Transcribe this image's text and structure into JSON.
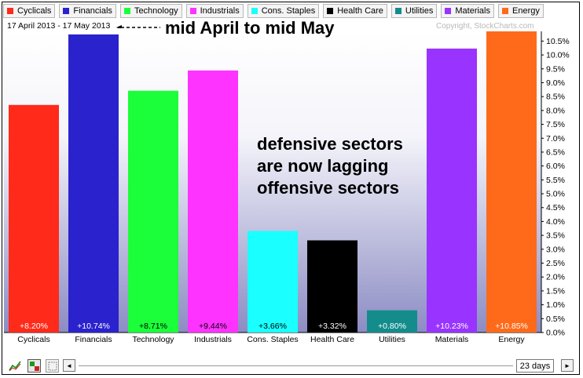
{
  "header": {
    "date_range": "17 April 2013 - 17 May 2013",
    "copyright": "Copyright, StockCharts.com",
    "arrow_note": "mid April to mid May"
  },
  "annotation": {
    "lines": [
      "defensive sectors",
      "are now lagging",
      "offensive sectors"
    ]
  },
  "legend": [
    {
      "label": "Cyclicals",
      "color": "#ff2a1a"
    },
    {
      "label": "Financials",
      "color": "#2a22cc"
    },
    {
      "label": "Technology",
      "color": "#1aff3a"
    },
    {
      "label": "Industrials",
      "color": "#ff33ff"
    },
    {
      "label": "Cons. Staples",
      "color": "#1affff"
    },
    {
      "label": "Health Care",
      "color": "#000000"
    },
    {
      "label": "Utilities",
      "color": "#148c8c"
    },
    {
      "label": "Materials",
      "color": "#9933ff"
    },
    {
      "label": "Energy",
      "color": "#ff6a1a"
    }
  ],
  "toolbar": {
    "days_label": "23 days",
    "left_arrow": "◄",
    "right_arrow": "►"
  },
  "chart_data": {
    "type": "bar",
    "categories": [
      "Cyclicals",
      "Financials",
      "Technology",
      "Industrials",
      "Cons. Staples",
      "Health Care",
      "Utilities",
      "Materials",
      "Energy"
    ],
    "values": [
      8.2,
      10.74,
      8.71,
      9.44,
      3.66,
      3.32,
      0.8,
      10.23,
      10.85
    ],
    "value_labels": [
      "+8.20%",
      "+10.74%",
      "+8.71%",
      "+9.44%",
      "+3.66%",
      "+3.32%",
      "+0.80%",
      "+10.23%",
      "+10.85%"
    ],
    "colors": [
      "#ff2a1a",
      "#2a22cc",
      "#1aff3a",
      "#ff33ff",
      "#1affff",
      "#000000",
      "#148c8c",
      "#9933ff",
      "#ff6a1a"
    ],
    "label_colors": [
      "#ffffff",
      "#ffffff",
      "#000000",
      "#000000",
      "#000000",
      "#ffffff",
      "#ffffff",
      "#ffffff",
      "#ffffff"
    ],
    "y_ticks": [
      "0.0%",
      "0.5%",
      "1.0%",
      "1.5%",
      "2.0%",
      "2.5%",
      "3.0%",
      "3.5%",
      "4.0%",
      "4.5%",
      "5.0%",
      "5.5%",
      "6.0%",
      "6.5%",
      "7.0%",
      "7.5%",
      "8.0%",
      "8.5%",
      "9.0%",
      "9.5%",
      "10.0%",
      "10.5%"
    ],
    "ylim": [
      0,
      10.85
    ],
    "y_axis_position": "right",
    "background": "gradient white to lavender",
    "grid": false
  }
}
